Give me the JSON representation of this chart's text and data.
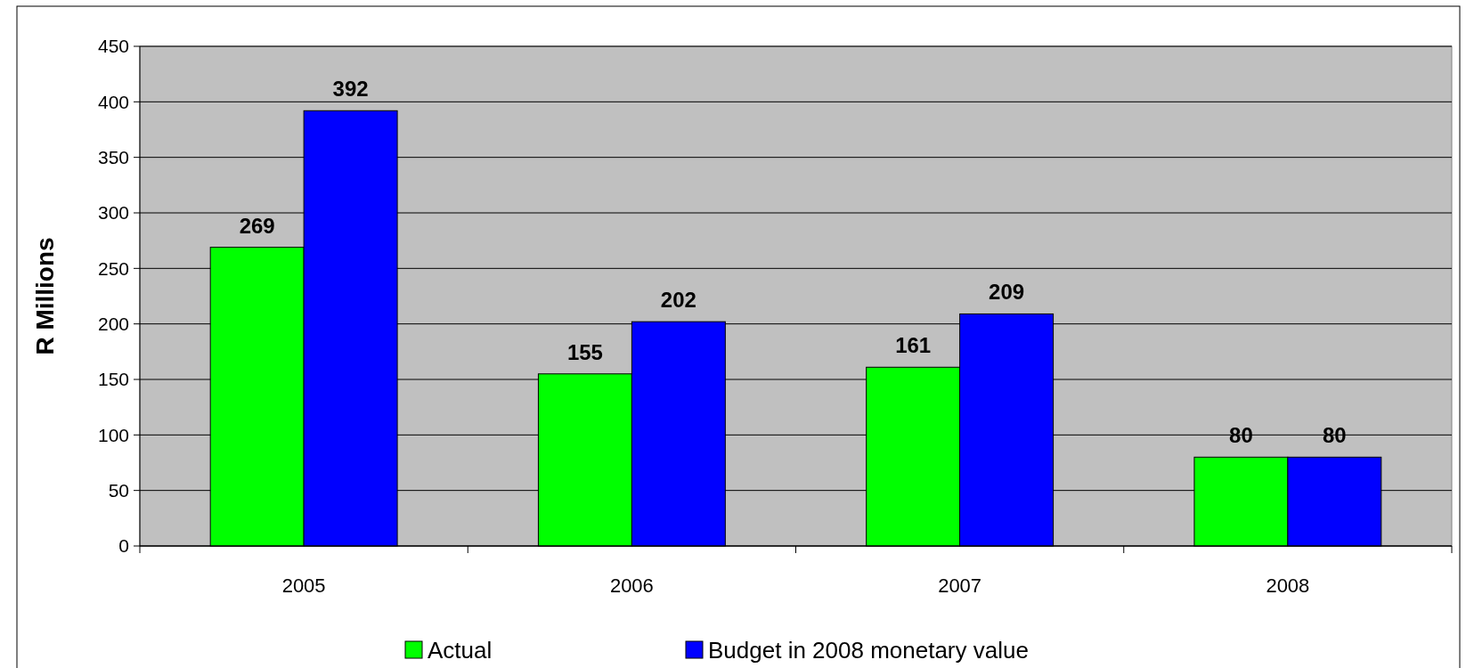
{
  "chart_data": {
    "type": "bar",
    "ylabel": "R Millions",
    "categories": [
      "2005",
      "2006",
      "2007",
      "2008"
    ],
    "series": [
      {
        "name": "Actual",
        "color": "#00ff00",
        "values": [
          269,
          155,
          161,
          80
        ]
      },
      {
        "name": "Budget in 2008 monetary value",
        "color": "#0000ff",
        "values": [
          392,
          202,
          209,
          80
        ]
      }
    ],
    "ylim": [
      0,
      450
    ],
    "yticks": [
      0,
      50,
      100,
      150,
      200,
      250,
      300,
      350,
      400,
      450
    ],
    "grid": "y",
    "data_labels": true,
    "legend": "bottom"
  }
}
